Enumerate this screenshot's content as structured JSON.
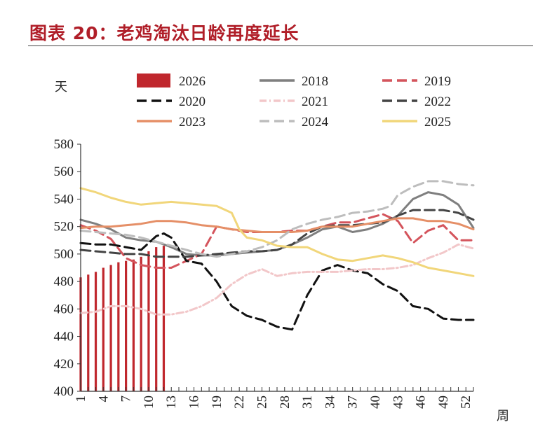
{
  "chart_data": {
    "type": "line",
    "title": "图表 20：老鸡淘汰日龄再度延长",
    "ylabel": "天",
    "xlabel": "周",
    "ylim": [
      400,
      580
    ],
    "yticks": [
      400,
      420,
      440,
      460,
      480,
      500,
      520,
      540,
      560,
      580
    ],
    "xlim": [
      1,
      53
    ],
    "xticks": [
      1,
      4,
      7,
      10,
      13,
      16,
      19,
      22,
      25,
      28,
      31,
      34,
      37,
      40,
      43,
      46,
      49,
      52
    ],
    "legend": [
      "2026",
      "2018",
      "2019",
      "2020",
      "2021",
      "2022",
      "2023",
      "2024",
      "2025"
    ],
    "colors": {
      "2026": "#c0272d",
      "2018": "#7f7f7f",
      "2019": "#d4545c",
      "2020": "#111111",
      "2021": "#f2c7c9",
      "2022": "#444444",
      "2023": "#e58f67",
      "2024": "#bdbdbd",
      "2025": "#f1d67a"
    },
    "bars": {
      "name": "2026",
      "x": [
        1,
        2,
        3,
        4,
        5,
        6,
        7,
        8,
        9,
        10,
        11,
        12
      ],
      "values": [
        483,
        485,
        487,
        490,
        492,
        494,
        495,
        496,
        498,
        502,
        505,
        506
      ]
    },
    "series": [
      {
        "name": "2018",
        "style": "solid",
        "x": [
          1,
          3,
          5,
          7,
          9,
          11,
          13,
          15,
          17,
          19,
          21,
          23,
          25,
          27,
          29,
          31,
          33,
          35,
          37,
          39,
          41,
          43,
          45,
          47,
          49,
          51,
          53
        ],
        "values": [
          525,
          522,
          518,
          512,
          510,
          509,
          505,
          500,
          499,
          499,
          500,
          501,
          502,
          503,
          507,
          512,
          518,
          520,
          516,
          518,
          522,
          528,
          540,
          545,
          543,
          536,
          519
        ]
      },
      {
        "name": "2019",
        "style": "dash",
        "x": [
          1,
          3,
          5,
          7,
          9,
          11,
          13,
          15,
          17,
          19,
          21,
          23,
          25,
          27,
          29,
          31,
          33,
          35,
          37,
          39,
          41,
          43,
          45,
          47,
          49,
          51,
          53
        ],
        "values": [
          521,
          517,
          511,
          497,
          492,
          490,
          490,
          495,
          500,
          520,
          518,
          516,
          516,
          516,
          517,
          517,
          520,
          523,
          523,
          526,
          529,
          524,
          508,
          517,
          521,
          510,
          510
        ]
      },
      {
        "name": "2020",
        "style": "dash",
        "x": [
          1,
          3,
          5,
          7,
          9,
          11,
          12,
          13,
          15,
          17,
          19,
          21,
          23,
          25,
          27,
          29,
          31,
          33,
          35,
          37,
          39,
          41,
          43,
          45,
          47,
          49,
          51,
          53
        ],
        "values": [
          508,
          507,
          507,
          505,
          503,
          513,
          515,
          512,
          495,
          493,
          480,
          462,
          455,
          452,
          447,
          445,
          470,
          488,
          492,
          488,
          486,
          478,
          473,
          462,
          460,
          453,
          452,
          452
        ]
      },
      {
        "name": "2021",
        "style": "dashdot",
        "x": [
          1,
          3,
          5,
          7,
          9,
          11,
          13,
          15,
          17,
          19,
          21,
          23,
          25,
          27,
          29,
          31,
          33,
          35,
          37,
          39,
          41,
          43,
          45,
          47,
          49,
          51,
          53
        ],
        "values": [
          457,
          458,
          462,
          462,
          460,
          456,
          456,
          458,
          462,
          468,
          478,
          485,
          489,
          484,
          486,
          487,
          487,
          487,
          488,
          489,
          489,
          490,
          492,
          497,
          501,
          507,
          504
        ]
      },
      {
        "name": "2022",
        "style": "dash",
        "x": [
          1,
          3,
          5,
          7,
          9,
          11,
          13,
          15,
          17,
          19,
          21,
          23,
          25,
          27,
          29,
          31,
          33,
          35,
          37,
          39,
          41,
          43,
          45,
          47,
          49,
          51,
          53
        ],
        "values": [
          503,
          502,
          501,
          500,
          500,
          498,
          498,
          498,
          499,
          500,
          501,
          502,
          502,
          503,
          507,
          515,
          520,
          521,
          521,
          522,
          523,
          528,
          532,
          532,
          532,
          530,
          525
        ]
      },
      {
        "name": "2023",
        "style": "solid",
        "x": [
          1,
          3,
          5,
          7,
          9,
          11,
          13,
          15,
          17,
          19,
          21,
          23,
          25,
          27,
          29,
          31,
          33,
          35,
          37,
          39,
          41,
          43,
          45,
          47,
          49,
          51,
          53
        ],
        "values": [
          519,
          520,
          520,
          521,
          522,
          524,
          524,
          523,
          521,
          520,
          518,
          517,
          516,
          516,
          516,
          517,
          520,
          520,
          520,
          522,
          524,
          526,
          526,
          524,
          524,
          522,
          518
        ]
      },
      {
        "name": "2024",
        "style": "dash",
        "x": [
          1,
          3,
          5,
          7,
          9,
          11,
          13,
          15,
          17,
          19,
          21,
          23,
          25,
          27,
          29,
          31,
          33,
          35,
          37,
          39,
          41,
          42,
          43,
          45,
          47,
          49,
          51,
          53
        ],
        "values": [
          517,
          516,
          515,
          514,
          512,
          509,
          506,
          503,
          500,
          498,
          500,
          502,
          505,
          510,
          518,
          522,
          525,
          527,
          530,
          531,
          533,
          535,
          543,
          549,
          553,
          553,
          551,
          550
        ]
      },
      {
        "name": "2025",
        "style": "solid",
        "x": [
          1,
          3,
          5,
          7,
          9,
          11,
          13,
          15,
          17,
          19,
          21,
          22,
          23,
          25,
          27,
          29,
          31,
          33,
          35,
          37,
          39,
          41,
          43,
          45,
          47,
          49,
          51,
          53
        ],
        "values": [
          548,
          545,
          541,
          538,
          536,
          537,
          538,
          537,
          536,
          535,
          530,
          518,
          512,
          510,
          506,
          505,
          505,
          500,
          496,
          495,
          497,
          499,
          497,
          494,
          490,
          488,
          486,
          484
        ]
      }
    ]
  }
}
